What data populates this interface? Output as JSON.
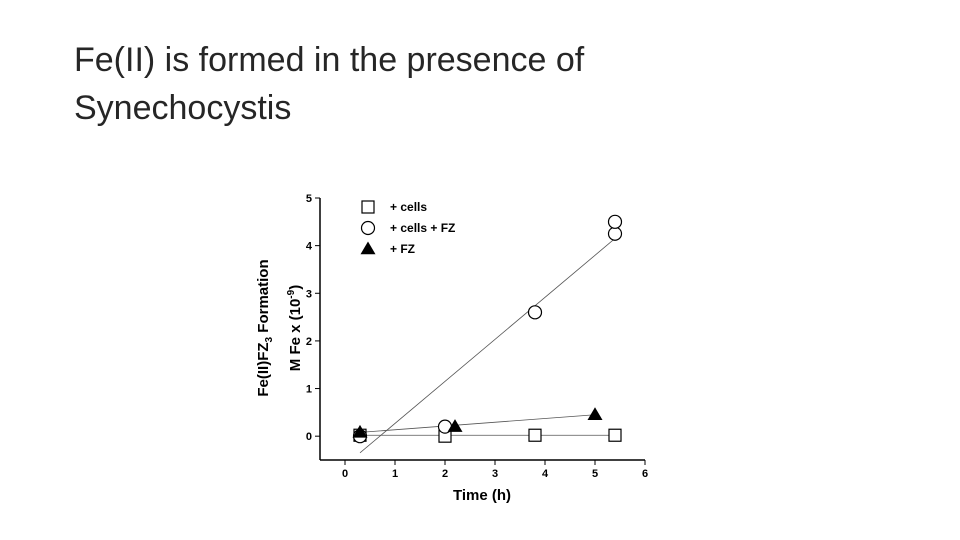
{
  "slide": {
    "title_line1": "Fe(II) is formed in the presence of",
    "title_line2": "Synechocystis"
  },
  "chart_data": {
    "type": "scatter",
    "xlabel": "Time (h)",
    "ylabel_line1": "Fe(II)FZ3 Formation",
    "ylabel_line2": "M Fe x (10-9)",
    "xlim": [
      -0.5,
      6
    ],
    "ylim": [
      -0.5,
      5
    ],
    "xticks": [
      0,
      1,
      2,
      3,
      4,
      5,
      6
    ],
    "yticks": [
      0,
      1,
      2,
      3,
      4,
      5
    ],
    "grid": false,
    "legend_position": "top-left",
    "series": [
      {
        "name": "+ cells",
        "marker": "square",
        "x": [
          0.3,
          2.0,
          3.8,
          5.4
        ],
        "y": [
          0.02,
          0.0,
          0.02,
          0.02
        ],
        "trendline": [
          [
            0.3,
            0.02
          ],
          [
            5.4,
            0.02
          ]
        ]
      },
      {
        "name": "+ cells + FZ",
        "marker": "circle",
        "x": [
          0.3,
          2.0,
          3.8,
          5.4,
          5.4
        ],
        "y": [
          0.0,
          0.2,
          2.6,
          4.25,
          4.5
        ],
        "trendline": [
          [
            0.3,
            -0.35
          ],
          [
            5.4,
            4.15
          ]
        ]
      },
      {
        "name": "+ FZ",
        "marker": "triangle",
        "x": [
          0.3,
          2.2,
          5.0
        ],
        "y": [
          0.08,
          0.2,
          0.45
        ],
        "trendline": [
          [
            0.3,
            0.08
          ],
          [
            5.0,
            0.45
          ]
        ]
      }
    ]
  }
}
